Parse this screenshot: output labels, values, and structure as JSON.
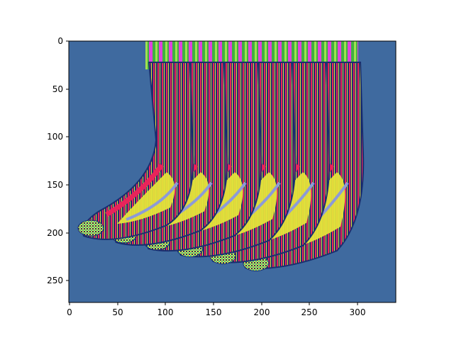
{
  "figure": {
    "image_description": "psychedelic false-color socks",
    "x_ticks": [
      "0",
      "50",
      "100",
      "150",
      "200",
      "250",
      "300"
    ],
    "y_ticks": [
      "0",
      "50",
      "100",
      "150",
      "200",
      "250"
    ],
    "colors": {
      "background": "#3f6a9f",
      "navy": "#1a2f6f",
      "red": "#e8245a",
      "yellow": "#e4e43a",
      "lavender": "#8c9ad8",
      "magenta": "#e040e0",
      "green": "#40b040",
      "lime": "#a0e050",
      "teal": "#40c0a0"
    }
  }
}
